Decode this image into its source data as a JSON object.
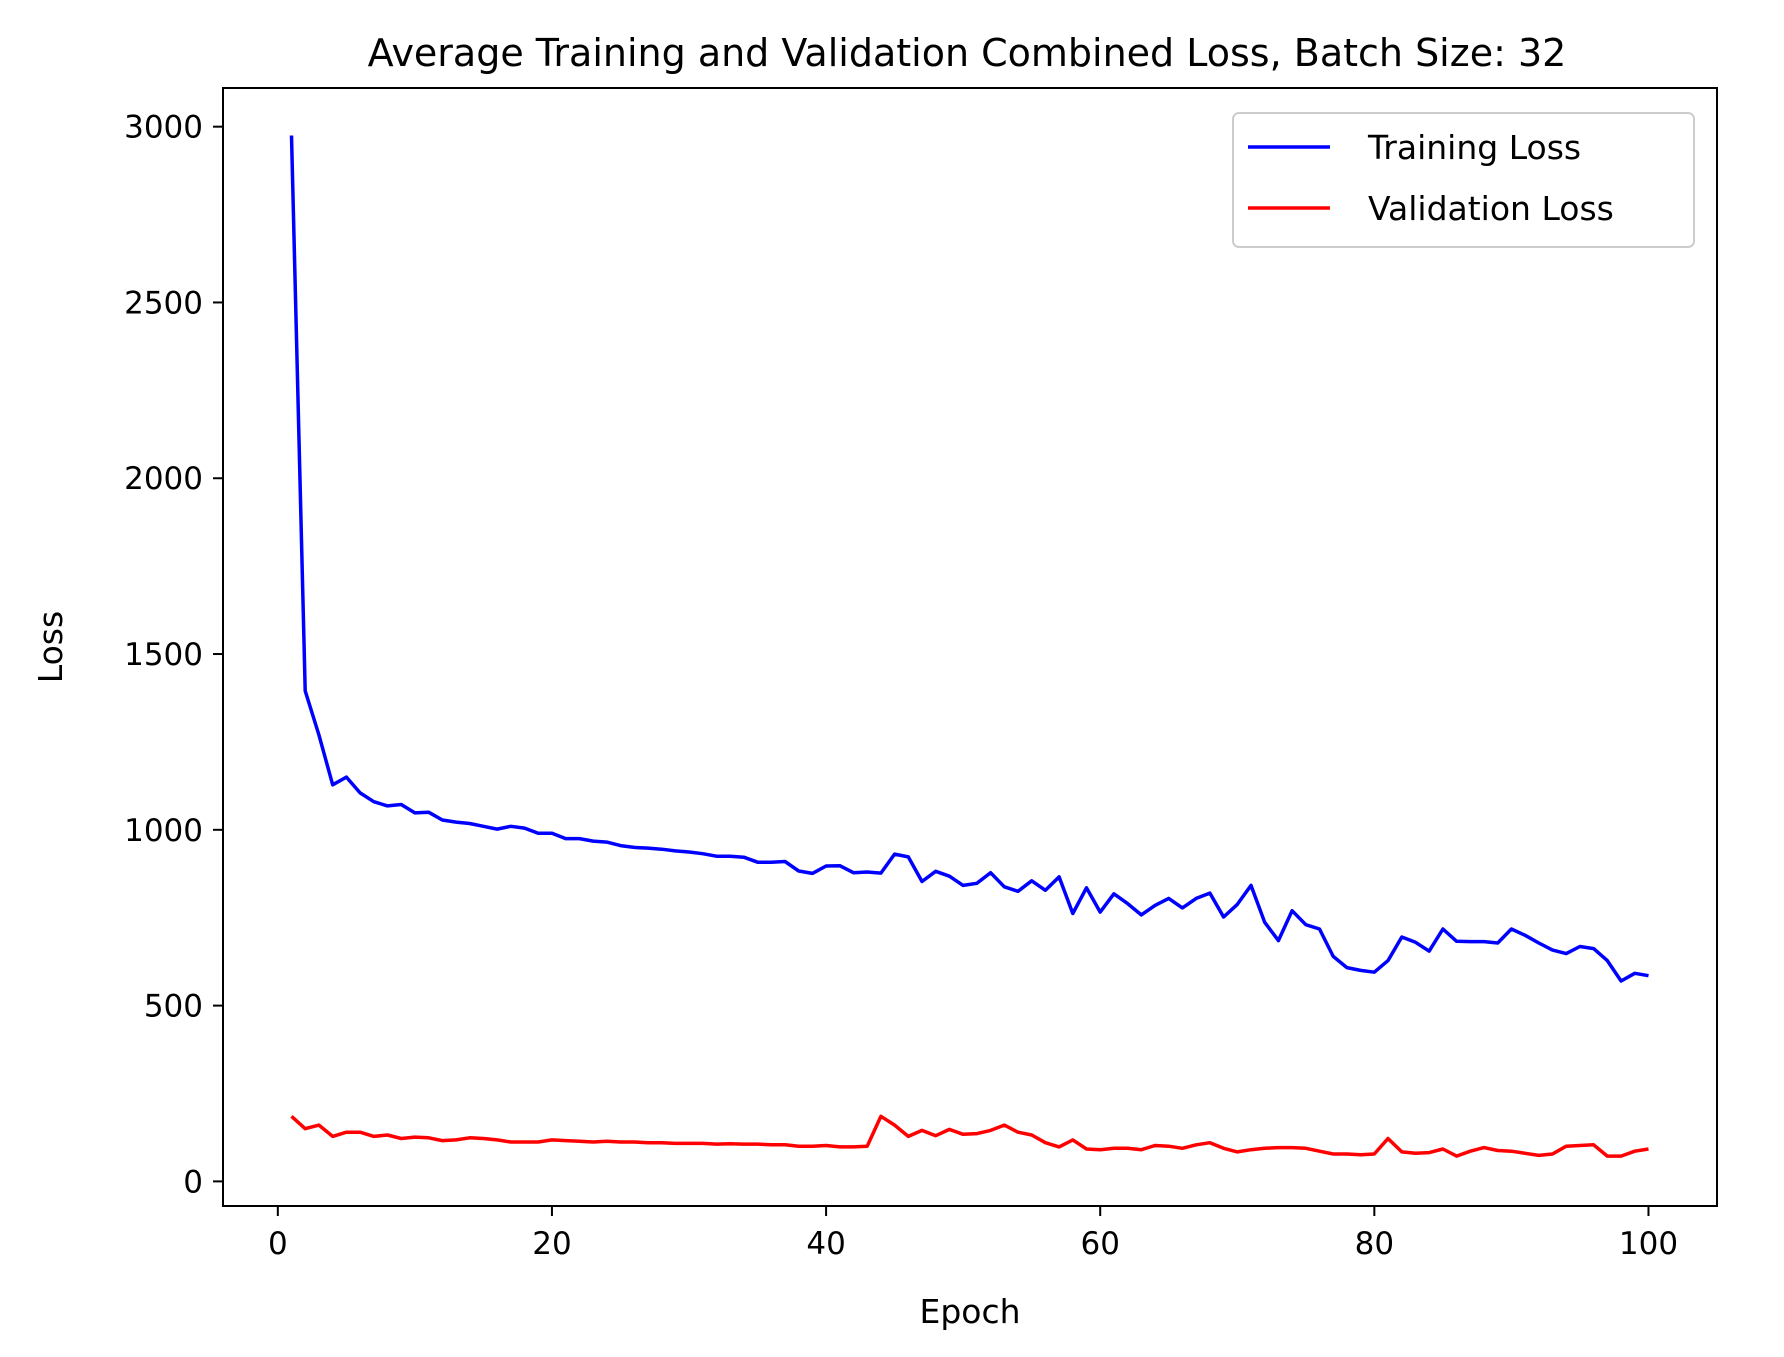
{
  "chart_data": {
    "type": "line",
    "title": "Average Training and Validation Combined Loss, Batch Size: 32",
    "xlabel": "Epoch",
    "ylabel": "Loss",
    "xlim": [
      -4,
      105
    ],
    "ylim": [
      -70,
      3110
    ],
    "xticks": [
      0,
      20,
      40,
      60,
      80,
      100
    ],
    "yticks": [
      0,
      500,
      1000,
      1500,
      2000,
      2500,
      3000
    ],
    "grid": false,
    "legend_position": "top-right",
    "x": [
      1,
      2,
      3,
      4,
      5,
      6,
      7,
      8,
      9,
      10,
      11,
      12,
      13,
      14,
      15,
      16,
      17,
      18,
      19,
      20,
      21,
      22,
      23,
      24,
      25,
      26,
      27,
      28,
      29,
      30,
      31,
      32,
      33,
      34,
      35,
      36,
      37,
      38,
      39,
      40,
      41,
      42,
      43,
      44,
      45,
      46,
      47,
      48,
      49,
      50,
      51,
      52,
      53,
      54,
      55,
      56,
      57,
      58,
      59,
      60,
      61,
      62,
      63,
      64,
      65,
      66,
      67,
      68,
      69,
      70,
      71,
      72,
      73,
      74,
      75,
      76,
      77,
      78,
      79,
      80,
      81,
      82,
      83,
      84,
      85,
      86,
      87,
      88,
      89,
      90,
      91,
      92,
      93,
      94,
      95,
      96,
      97,
      98,
      99,
      100
    ],
    "series": [
      {
        "name": "Training Loss",
        "color": "#0000ff",
        "values": [
          2975,
          1395,
          1270,
          1128,
          1150,
          1105,
          1080,
          1068,
          1072,
          1048,
          1050,
          1028,
          1022,
          1018,
          1010,
          1002,
          1010,
          1005,
          990,
          990,
          975,
          975,
          968,
          965,
          955,
          950,
          948,
          945,
          940,
          937,
          932,
          925,
          925,
          922,
          908,
          908,
          910,
          883,
          876,
          897,
          898,
          878,
          880,
          877,
          931,
          923,
          853,
          882,
          868,
          842,
          848,
          878,
          838,
          825,
          855,
          828,
          866,
          762,
          835,
          766,
          818,
          790,
          758,
          785,
          805,
          778,
          805,
          820,
          752,
          788,
          842,
          737,
          685,
          770,
          730,
          718,
          640,
          608,
          600,
          595,
          628,
          695,
          680,
          655,
          718,
          683,
          682,
          682,
          678,
          718,
          700,
          678,
          658,
          648,
          668,
          662,
          628,
          570,
          592,
          585
        ]
      },
      {
        "name": "Validation Loss",
        "color": "#ff0000",
        "values": [
          185,
          150,
          160,
          128,
          140,
          140,
          128,
          132,
          122,
          126,
          124,
          116,
          118,
          124,
          122,
          118,
          112,
          112,
          112,
          118,
          116,
          114,
          112,
          114,
          112,
          112,
          110,
          110,
          108,
          108,
          108,
          106,
          107,
          106,
          106,
          104,
          104,
          100,
          100,
          102,
          98,
          98,
          100,
          185,
          160,
          128,
          145,
          130,
          148,
          134,
          136,
          145,
          160,
          140,
          132,
          110,
          98,
          118,
          92,
          90,
          94,
          94,
          90,
          102,
          100,
          94,
          104,
          110,
          94,
          84,
          90,
          94,
          96,
          96,
          94,
          86,
          78,
          78,
          76,
          78,
          122,
          84,
          80,
          82,
          92,
          72,
          86,
          96,
          88,
          86,
          80,
          74,
          78,
          100,
          102,
          104,
          72,
          72,
          86,
          92
        ]
      }
    ]
  }
}
